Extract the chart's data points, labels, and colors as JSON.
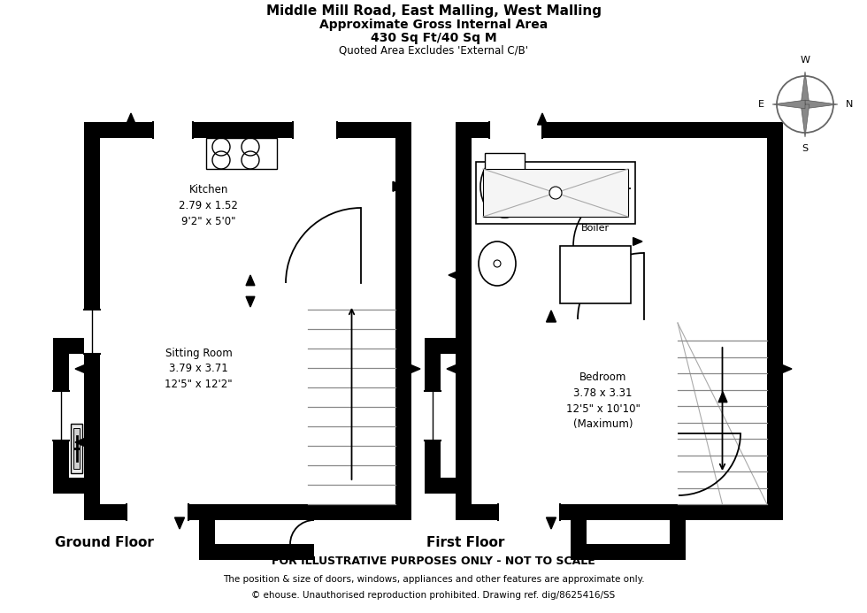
{
  "title_line1": "Middle Mill Road, East Malling, West Malling",
  "title_line2": "Approximate Gross Internal Area",
  "title_line3": "430 Sq Ft/40 Sq M",
  "title_line4": "Quoted Area Excludes 'External C/B'",
  "footer_line1": "FOR ILLUSTRATIVE PURPOSES ONLY - NOT TO SCALE",
  "footer_line2": "The position & size of doors, windows, appliances and other features are approximate only.",
  "footer_line3": "© ehouse. Unauthorised reproduction prohibited. Drawing ref. dig/8625416/SS",
  "ground_floor_label": "Ground Floor",
  "first_floor_label": "First Floor",
  "kitchen_label": "Kitchen\n2.79 x 1.52\n9'2\" x 5'0\"",
  "sitting_room_label": "Sitting Room\n3.79 x 3.71\n12'5\" x 12'2\"",
  "bedroom_label": "Bedroom\n3.78 x 3.31\n12'5\" x 10'10\"\n(Maximum)",
  "boiler_label": "Boiler",
  "wall_color": "#000000",
  "floor_color": "#ffffff",
  "bg_color": "#ffffff",
  "gray": "#aaaaaa",
  "lt_gray": "#dddddd"
}
